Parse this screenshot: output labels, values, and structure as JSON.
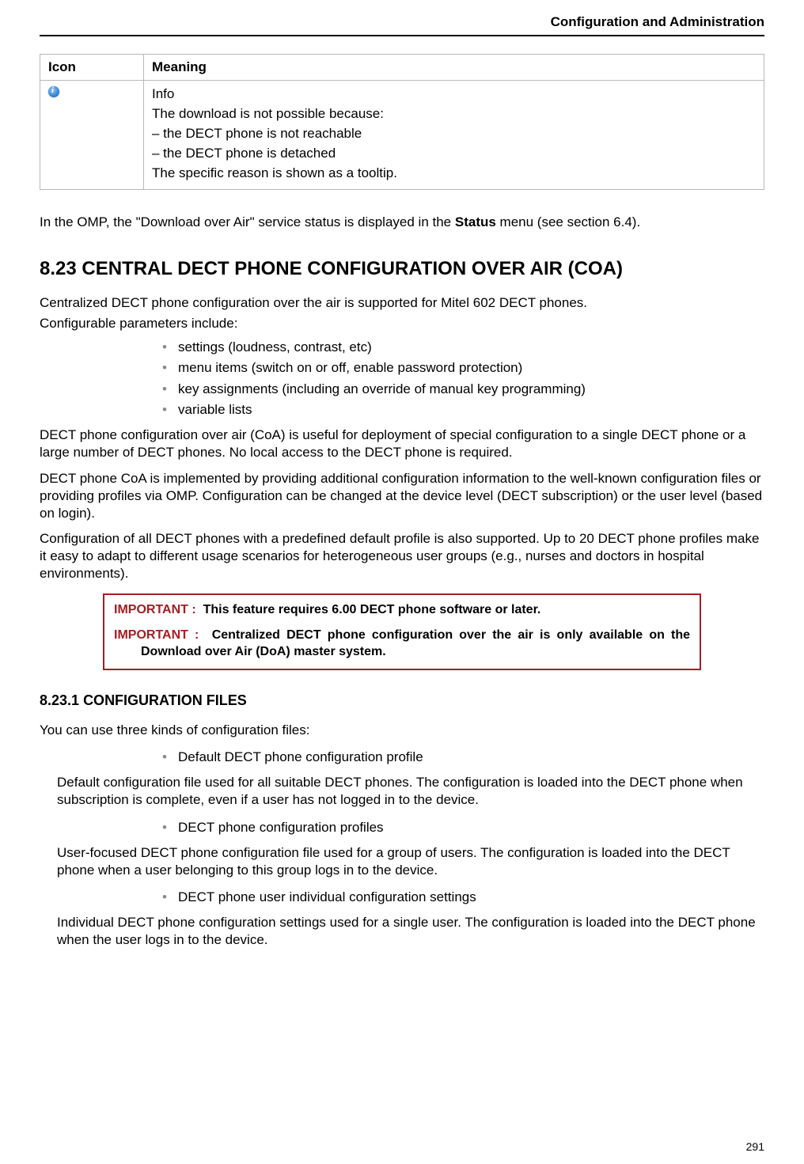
{
  "header": {
    "title": "Configuration and Administration"
  },
  "table": {
    "headers": [
      "Icon",
      "Meaning"
    ],
    "row": {
      "icon_name": "info-icon",
      "lines": [
        "Info",
        "The download is not possible because:",
        "– the DECT phone is not reachable",
        "– the DECT phone is detached",
        "The specific reason is shown as a tooltip."
      ]
    }
  },
  "omp_line_prefix": "In the OMP, the \"Download over Air\" service status is displayed in the ",
  "omp_line_bold": "Status",
  "omp_line_suffix": " menu (see section 6.4).",
  "section": {
    "number": "8.23",
    "title": "CENTRAL DECT PHONE CONFIGURATION OVER AIR (COA)",
    "intro1": "Centralized DECT phone configuration over the air is supported for Mitel 602 DECT phones.",
    "intro2": "Configurable parameters include:",
    "bullets": [
      "settings (loudness, contrast, etc)",
      "menu items (switch on or off, enable password protection)",
      "key assignments (including an override of manual key programming)",
      "variable lists"
    ],
    "para1": "DECT phone configuration over air (CoA) is useful for deployment of special configuration to a single DECT phone or a large number of DECT phones. No local access to the DECT phone is required.",
    "para2": "DECT phone CoA is implemented by providing additional configuration information to the well-known configuration files or providing profiles via OMP. Configuration can be changed at the device level (DECT subscription) or the user level (based on login).",
    "para3": "Configuration of all DECT phones with a predefined default profile is also supported. Up to 20 DECT phone profiles make it easy to adapt to different usage scenarios for heterogeneous user groups (e.g., nurses and doctors in hospital environments).",
    "important_label": "IMPORTANT :",
    "important1": "This feature requires 6.00 DECT phone software or later.",
    "important2": "Centralized DECT phone configuration over the air is only available on the Download over Air (DoA) master system."
  },
  "subsection": {
    "number": "8.23.1",
    "title": "CONFIGURATION FILES",
    "intro": "You can use three kinds of configuration files:",
    "items": [
      {
        "bullet": "Default DECT phone configuration profile",
        "desc": "Default configuration file used for all suitable DECT phones. The configuration is loaded into the DECT phone when subscription is complete, even if a user has not logged in to the device."
      },
      {
        "bullet": "DECT phone configuration profiles",
        "desc": "User-focused DECT phone configuration file used for a group of users. The configuration is loaded into the DECT phone when a user belonging to this group logs in to the device."
      },
      {
        "bullet": "DECT phone user individual configuration settings",
        "desc": "Individual DECT phone configuration settings used for a single user. The configuration is loaded into the DECT phone when the user logs in to the device."
      }
    ]
  },
  "page_number": "291",
  "colors": {
    "text": "#000000",
    "border": "#b8b8b8",
    "important_border": "#a41e22",
    "important_label": "#a41e22",
    "bullet": "#8a8a8a"
  }
}
